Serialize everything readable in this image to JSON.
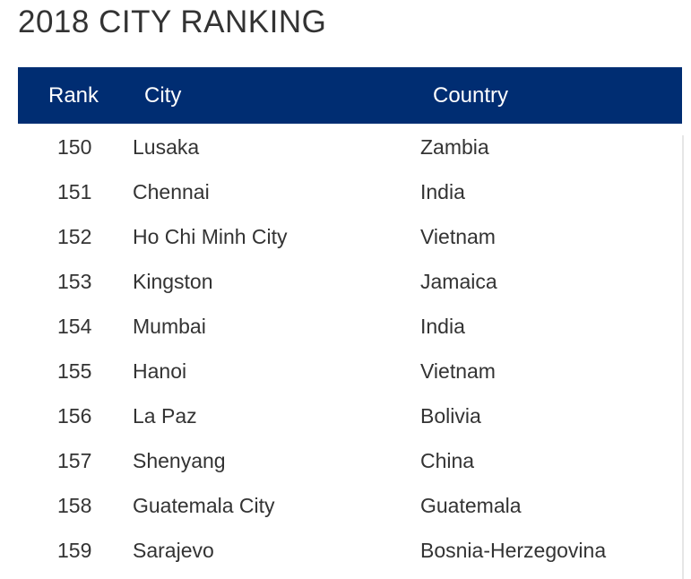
{
  "page": {
    "title": "2018 CITY RANKING"
  },
  "table": {
    "header_bg": "#002d72",
    "columns": [
      "Rank",
      "City",
      "Country"
    ],
    "rows": [
      {
        "rank": "150",
        "city": "Lusaka",
        "country": "Zambia"
      },
      {
        "rank": "151",
        "city": "Chennai",
        "country": "India"
      },
      {
        "rank": "152",
        "city": "Ho Chi Minh City",
        "country": "Vietnam"
      },
      {
        "rank": "153",
        "city": "Kingston",
        "country": "Jamaica"
      },
      {
        "rank": "154",
        "city": "Mumbai",
        "country": "India"
      },
      {
        "rank": "155",
        "city": "Hanoi",
        "country": "Vietnam"
      },
      {
        "rank": "156",
        "city": "La Paz",
        "country": "Bolivia"
      },
      {
        "rank": "157",
        "city": "Shenyang",
        "country": "China"
      },
      {
        "rank": "158",
        "city": "Guatemala City",
        "country": "Guatemala"
      },
      {
        "rank": "159",
        "city": "Sarajevo",
        "country": "Bosnia-Herzegovina"
      }
    ]
  }
}
